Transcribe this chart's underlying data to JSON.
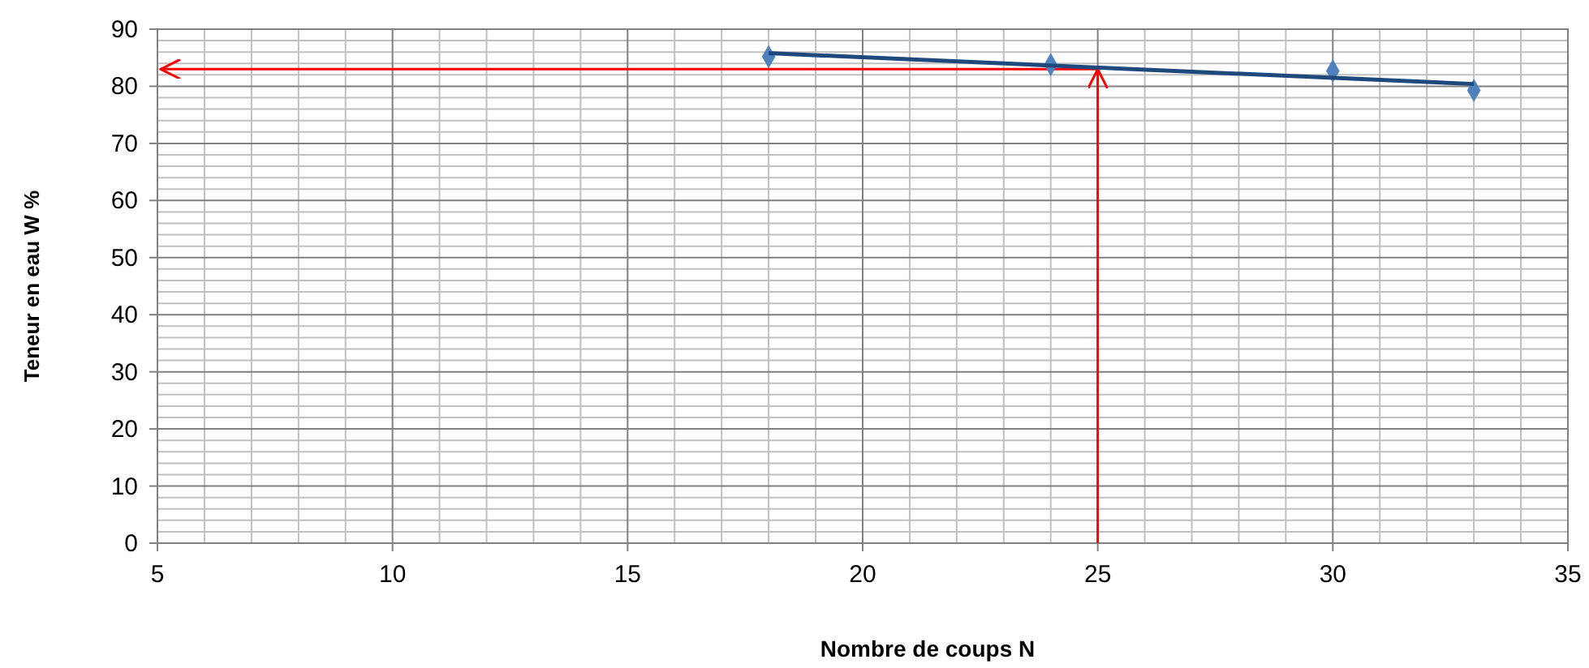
{
  "chart_data": {
    "type": "scatter",
    "xlabel": "Nombre de coups  N",
    "ylabel": "Teneur en eau W %",
    "xlim": [
      5,
      35
    ],
    "xticks": [
      5,
      10,
      15,
      20,
      25,
      30,
      35
    ],
    "ylim": [
      0,
      90
    ],
    "yticks": [
      0,
      10,
      20,
      30,
      40,
      50,
      60,
      70,
      80,
      90
    ],
    "grid": true,
    "series": [
      {
        "marker": "diamond",
        "color": "#4f81bd",
        "x": [
          18,
          24,
          30,
          33
        ],
        "values": [
          85.2,
          83.8,
          82.7,
          79.3
        ]
      },
      {
        "type": "line",
        "color": "#1f497d",
        "x": [
          18,
          33
        ],
        "values": [
          85.8,
          80.4
        ]
      }
    ],
    "ref_lines": [
      {
        "axis": "x",
        "value": 25,
        "color": "#ff0000"
      },
      {
        "axis": "y",
        "value": 83,
        "color": "#ff0000"
      }
    ]
  }
}
